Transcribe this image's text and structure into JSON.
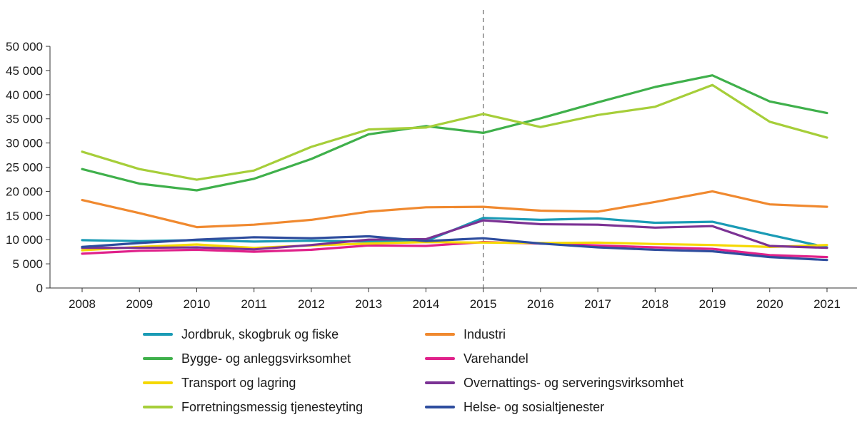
{
  "chart_data": {
    "type": "line",
    "title": "",
    "xlabel": "",
    "ylabel": "",
    "ylim": [
      0,
      50000
    ],
    "yticks": [
      0,
      5000,
      10000,
      15000,
      20000,
      25000,
      30000,
      35000,
      40000,
      45000,
      50000
    ],
    "ytick_labels": [
      "0",
      "5 000",
      "10 000",
      "15 000",
      "20 000",
      "25 000",
      "30 000",
      "35 000",
      "40 000",
      "45 000",
      "50 000"
    ],
    "categories": [
      "2008",
      "2009",
      "2010",
      "2011",
      "2012",
      "2013",
      "2014",
      "2015",
      "2016",
      "2017",
      "2018",
      "2019",
      "2020",
      "2021"
    ],
    "reference_line": "2015",
    "grid": false,
    "legend_position": "bottom",
    "series": [
      {
        "name": "Jordbruk, skogbruk og fiske",
        "color": "#1a9bb5",
        "values": [
          9900,
          9700,
          9900,
          9600,
          9800,
          9600,
          9700,
          14500,
          14100,
          14400,
          13500,
          13700,
          11000,
          8400
        ]
      },
      {
        "name": "Industri",
        "color": "#f0892f",
        "values": [
          18200,
          15500,
          12600,
          13100,
          14100,
          15800,
          16700,
          16800,
          16000,
          15800,
          17800,
          20000,
          17300,
          16800
        ]
      },
      {
        "name": "Bygge- og anleggsvirksomhet",
        "color": "#3fb04b",
        "values": [
          24600,
          21600,
          20200,
          22600,
          26700,
          31800,
          33500,
          32100,
          35100,
          38400,
          41600,
          44000,
          38600,
          36200
        ]
      },
      {
        "name": "Varehandel",
        "color": "#e0218a",
        "values": [
          7100,
          7700,
          7900,
          7500,
          7900,
          8800,
          8700,
          9500,
          9200,
          8800,
          8400,
          8100,
          6800,
          6400
        ]
      },
      {
        "name": "Transport og lagring",
        "color": "#f5d800",
        "values": [
          7800,
          8500,
          9000,
          8300,
          8800,
          9200,
          9500,
          9400,
          9300,
          9400,
          9100,
          8900,
          8500,
          8900
        ]
      },
      {
        "name": "Overnattings- og serveringsvirksomhet",
        "color": "#7b3294",
        "values": [
          8300,
          8300,
          8400,
          8000,
          8900,
          10000,
          10100,
          14000,
          13200,
          13100,
          12500,
          12800,
          8700,
          8300
        ]
      },
      {
        "name": "Forretningsmessig tjenesteyting",
        "color": "#a6ce39",
        "values": [
          28200,
          24600,
          22400,
          24300,
          29200,
          32800,
          33200,
          36000,
          33300,
          35800,
          37500,
          42000,
          34400,
          31100
        ]
      },
      {
        "name": "Helse- og sosialtjenester",
        "color": "#2e4d9e",
        "values": [
          8500,
          9300,
          10000,
          10500,
          10300,
          10700,
          9700,
          10300,
          9200,
          8400,
          7900,
          7600,
          6400,
          5800
        ]
      }
    ]
  }
}
